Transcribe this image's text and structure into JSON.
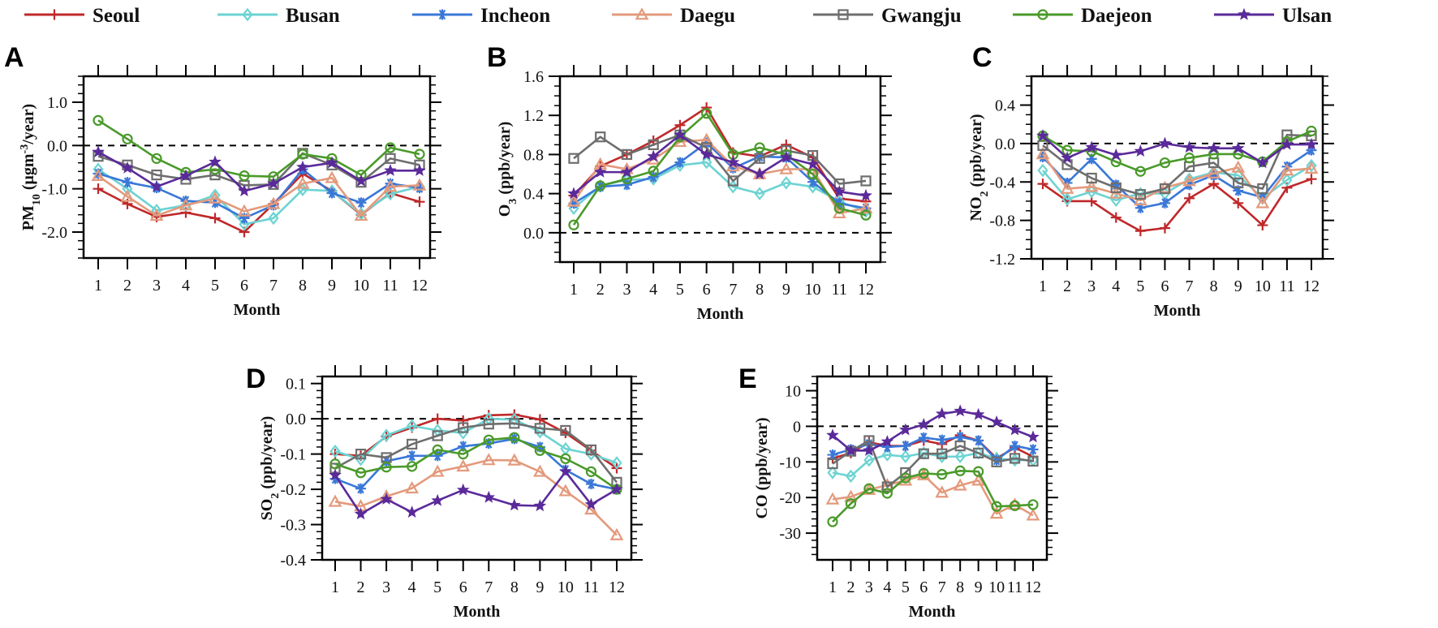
{
  "legend": [
    {
      "name": "Seoul",
      "color": "#c0282a",
      "marker": "plus"
    },
    {
      "name": "Busan",
      "color": "#6dd3d3",
      "marker": "diamond"
    },
    {
      "name": "Incheon",
      "color": "#3a78d8",
      "marker": "asterisk"
    },
    {
      "name": "Daegu",
      "color": "#e39a7c",
      "marker": "triangle"
    },
    {
      "name": "Gwangju",
      "color": "#6e6e6e",
      "marker": "square"
    },
    {
      "name": "Daejeon",
      "color": "#4a9a2a",
      "marker": "circle"
    },
    {
      "name": "Ulsan",
      "color": "#5a2a9a",
      "marker": "star"
    }
  ],
  "chart_data": [
    {
      "panel": "A",
      "type": "line",
      "xlabel": "Month",
      "ylabel_parts": [
        {
          "t": "PM",
          "s": ""
        },
        {
          "t": "10",
          "s": "sub"
        },
        {
          "t": " (μgm",
          "s": ""
        },
        {
          "t": "-3",
          "s": "sup"
        },
        {
          "t": "/year)",
          "s": ""
        }
      ],
      "x": [
        1,
        2,
        3,
        4,
        5,
        6,
        7,
        8,
        9,
        10,
        11,
        12
      ],
      "ylim": [
        -2.6,
        1.6
      ],
      "yticks": [
        1.0,
        0.0,
        -1.0,
        -2.0
      ],
      "ytick_labels": [
        "1.0",
        "0.0",
        "-1.0",
        "-2.0"
      ],
      "yminor": 0.2,
      "zero_line": true,
      "series": [
        {
          "name": "Seoul",
          "values": [
            -1.0,
            -1.35,
            -1.65,
            -1.55,
            -1.68,
            -2.0,
            -1.35,
            -0.65,
            -1.05,
            -1.6,
            -1.1,
            -1.3
          ]
        },
        {
          "name": "Busan",
          "values": [
            -0.55,
            -1.0,
            -1.5,
            -1.38,
            -1.15,
            -1.82,
            -1.68,
            -1.02,
            -1.05,
            -1.58,
            -1.12,
            -0.95
          ]
        },
        {
          "name": "Incheon",
          "values": [
            -0.65,
            -0.85,
            -0.98,
            -1.28,
            -1.32,
            -1.68,
            -1.38,
            -0.55,
            -1.1,
            -1.32,
            -0.88,
            -0.98
          ]
        },
        {
          "name": "Daegu",
          "values": [
            -0.7,
            -1.18,
            -1.62,
            -1.38,
            -1.22,
            -1.52,
            -1.35,
            -0.88,
            -0.75,
            -1.62,
            -0.95,
            -0.92
          ]
        },
        {
          "name": "Gwangju",
          "values": [
            -0.25,
            -0.45,
            -0.68,
            -0.78,
            -0.68,
            -0.92,
            -0.9,
            -0.18,
            -0.45,
            -0.85,
            -0.3,
            -0.45
          ]
        },
        {
          "name": "Daejeon",
          "values": [
            0.58,
            0.15,
            -0.3,
            -0.62,
            -0.55,
            -0.7,
            -0.72,
            -0.2,
            -0.3,
            -0.68,
            -0.05,
            -0.2
          ]
        },
        {
          "name": "Ulsan",
          "values": [
            -0.15,
            -0.52,
            -0.95,
            -0.7,
            -0.38,
            -1.05,
            -0.88,
            -0.5,
            -0.4,
            -0.82,
            -0.58,
            -0.58
          ]
        }
      ]
    },
    {
      "panel": "B",
      "type": "line",
      "xlabel": "Month",
      "ylabel_parts": [
        {
          "t": "O",
          "s": ""
        },
        {
          "t": "3",
          "s": "sub"
        },
        {
          "t": " (ppb/year)",
          "s": ""
        }
      ],
      "x": [
        1,
        2,
        3,
        4,
        5,
        6,
        7,
        8,
        9,
        10,
        11,
        12
      ],
      "ylim": [
        -0.3,
        1.6
      ],
      "yticks": [
        1.6,
        1.2,
        0.8,
        0.4,
        0.0
      ],
      "ytick_labels": [
        "1.6",
        "1.2",
        "0.8",
        "0.4",
        "0.0"
      ],
      "yminor": 0.1,
      "zero_line": true,
      "series": [
        {
          "name": "Seoul",
          "values": [
            0.38,
            0.68,
            0.8,
            0.94,
            1.1,
            1.28,
            0.82,
            0.78,
            0.9,
            0.77,
            0.35,
            0.32
          ]
        },
        {
          "name": "Busan",
          "values": [
            0.25,
            0.48,
            0.54,
            0.55,
            0.69,
            0.72,
            0.47,
            0.4,
            0.51,
            0.47,
            0.32,
            0.22
          ]
        },
        {
          "name": "Incheon",
          "values": [
            0.3,
            0.47,
            0.49,
            0.57,
            0.72,
            0.92,
            0.66,
            0.78,
            0.77,
            0.52,
            0.3,
            0.25
          ]
        },
        {
          "name": "Daegu",
          "values": [
            0.32,
            0.7,
            0.65,
            0.75,
            0.93,
            0.95,
            0.68,
            0.6,
            0.65,
            0.65,
            0.2,
            0.25
          ]
        },
        {
          "name": "Gwangju",
          "values": [
            0.76,
            0.98,
            0.8,
            0.9,
            1.0,
            0.87,
            0.53,
            0.76,
            0.84,
            0.79,
            0.5,
            0.53
          ]
        },
        {
          "name": "Daejeon",
          "values": [
            0.08,
            0.48,
            0.55,
            0.63,
            0.98,
            1.22,
            0.8,
            0.87,
            0.8,
            0.6,
            0.25,
            0.18
          ]
        },
        {
          "name": "Ulsan",
          "values": [
            0.4,
            0.62,
            0.62,
            0.78,
            1.0,
            0.8,
            0.72,
            0.6,
            0.77,
            0.7,
            0.42,
            0.38
          ]
        }
      ]
    },
    {
      "panel": "C",
      "type": "line",
      "xlabel": "Month",
      "ylabel_parts": [
        {
          "t": "NO",
          "s": ""
        },
        {
          "t": "2",
          "s": "sub"
        },
        {
          "t": " (ppb/year)",
          "s": ""
        }
      ],
      "x": [
        1,
        2,
        3,
        4,
        5,
        6,
        7,
        8,
        9,
        10,
        11,
        12
      ],
      "ylim": [
        -1.2,
        0.7
      ],
      "yticks": [
        0.4,
        0.0,
        -0.4,
        -0.8,
        -1.2
      ],
      "ytick_labels": [
        "0.4",
        "0.0",
        "-0.4",
        "-0.8",
        "-1.2"
      ],
      "yminor": 0.1,
      "zero_line": true,
      "series": [
        {
          "name": "Seoul",
          "values": [
            -0.42,
            -0.6,
            -0.6,
            -0.77,
            -0.91,
            -0.88,
            -0.57,
            -0.42,
            -0.62,
            -0.85,
            -0.46,
            -0.37
          ]
        },
        {
          "name": "Busan",
          "values": [
            -0.28,
            -0.58,
            -0.5,
            -0.59,
            -0.52,
            -0.52,
            -0.37,
            -0.3,
            -0.33,
            -0.57,
            -0.38,
            -0.23
          ]
        },
        {
          "name": "Incheon",
          "values": [
            -0.14,
            -0.41,
            -0.16,
            -0.43,
            -0.67,
            -0.62,
            -0.43,
            -0.33,
            -0.49,
            -0.56,
            -0.24,
            -0.07
          ]
        },
        {
          "name": "Daegu",
          "values": [
            -0.11,
            -0.47,
            -0.45,
            -0.52,
            -0.59,
            -0.46,
            -0.39,
            -0.31,
            -0.25,
            -0.62,
            -0.28,
            -0.26
          ]
        },
        {
          "name": "Gwangju",
          "values": [
            -0.02,
            -0.22,
            -0.36,
            -0.46,
            -0.53,
            -0.47,
            -0.24,
            -0.2,
            -0.41,
            -0.47,
            0.09,
            0.08
          ]
        },
        {
          "name": "Daejeon",
          "values": [
            0.08,
            -0.07,
            -0.08,
            -0.19,
            -0.29,
            -0.2,
            -0.15,
            -0.11,
            -0.11,
            -0.19,
            0.02,
            0.13
          ]
        },
        {
          "name": "Ulsan",
          "values": [
            0.08,
            -0.15,
            -0.04,
            -0.12,
            -0.08,
            0.0,
            -0.04,
            -0.05,
            -0.05,
            -0.2,
            -0.01,
            -0.01
          ]
        }
      ]
    },
    {
      "panel": "D",
      "type": "line",
      "xlabel": "Month",
      "ylabel_parts": [
        {
          "t": "SO",
          "s": ""
        },
        {
          "t": "2",
          "s": "sub"
        },
        {
          "t": " (ppb/year)",
          "s": ""
        }
      ],
      "x": [
        1,
        2,
        3,
        4,
        5,
        6,
        7,
        8,
        9,
        10,
        11,
        12
      ],
      "ylim": [
        -0.4,
        0.12
      ],
      "yticks": [
        0.1,
        0.0,
        -0.1,
        -0.2,
        -0.3,
        -0.4
      ],
      "ytick_labels": [
        "0.1",
        "0.0",
        "-0.1",
        "-0.2",
        "-0.3",
        "-0.4"
      ],
      "yminor": 0.02,
      "zero_line": true,
      "series": [
        {
          "name": "Seoul",
          "values": [
            -0.1,
            -0.105,
            -0.05,
            -0.025,
            0.0,
            -0.005,
            0.01,
            0.012,
            -0.002,
            -0.04,
            -0.09,
            -0.14
          ]
        },
        {
          "name": "Busan",
          "values": [
            -0.092,
            -0.115,
            -0.047,
            -0.02,
            -0.033,
            -0.04,
            0.0,
            -0.002,
            -0.037,
            -0.085,
            -0.1,
            -0.125
          ]
        },
        {
          "name": "Incheon",
          "values": [
            -0.17,
            -0.198,
            -0.12,
            -0.105,
            -0.105,
            -0.078,
            -0.07,
            -0.057,
            -0.08,
            -0.145,
            -0.185,
            -0.2
          ]
        },
        {
          "name": "Daegu",
          "values": [
            -0.235,
            -0.248,
            -0.22,
            -0.197,
            -0.15,
            -0.135,
            -0.117,
            -0.118,
            -0.15,
            -0.205,
            -0.257,
            -0.33
          ]
        },
        {
          "name": "Gwangju",
          "values": [
            -0.14,
            -0.1,
            -0.11,
            -0.072,
            -0.048,
            -0.025,
            -0.015,
            -0.013,
            -0.027,
            -0.033,
            -0.088,
            -0.18
          ]
        },
        {
          "name": "Daejeon",
          "values": [
            -0.128,
            -0.153,
            -0.137,
            -0.135,
            -0.088,
            -0.1,
            -0.06,
            -0.053,
            -0.09,
            -0.113,
            -0.15,
            -0.2
          ]
        },
        {
          "name": "Ulsan",
          "values": [
            -0.16,
            -0.27,
            -0.228,
            -0.265,
            -0.232,
            -0.202,
            -0.223,
            -0.245,
            -0.247,
            -0.15,
            -0.243,
            -0.2
          ]
        }
      ]
    },
    {
      "panel": "E",
      "type": "line",
      "xlabel": "Month",
      "ylabel_parts": [
        {
          "t": "CO (ppb/year)",
          "s": ""
        }
      ],
      "x": [
        1,
        2,
        3,
        4,
        5,
        6,
        7,
        8,
        9,
        10,
        11,
        12
      ],
      "ylim": [
        -37.5,
        14
      ],
      "yticks": [
        10,
        0,
        -10,
        -20,
        -30
      ],
      "ytick_labels": [
        "10",
        "0",
        "-10",
        "-20",
        "-30"
      ],
      "yminor": 2,
      "zero_line": true,
      "series": [
        {
          "name": "Seoul",
          "values": [
            -9,
            -7.5,
            -4.5,
            -5.5,
            -5.5,
            -4,
            -5,
            -2.5,
            -4,
            -9,
            -6,
            -8.5
          ]
        },
        {
          "name": "Busan",
          "values": [
            -13,
            -14,
            -9.5,
            -8,
            -8.5,
            -7.5,
            -8.5,
            -8.5,
            -7.5,
            -9,
            -9.5,
            -9.5
          ]
        },
        {
          "name": "Incheon",
          "values": [
            -8,
            -6.5,
            -5,
            -5.8,
            -5.5,
            -3.2,
            -3.8,
            -3,
            -4,
            -9.5,
            -5.5,
            -6.5
          ]
        },
        {
          "name": "Daegu",
          "values": [
            -20.5,
            -19.8,
            -17.8,
            -16.5,
            -15.2,
            -13.7,
            -18.6,
            -16.6,
            -15.2,
            -24.5,
            -22,
            -25
          ]
        },
        {
          "name": "Gwangju",
          "values": [
            -10.5,
            -7,
            -4,
            -17,
            -13,
            -7.7,
            -7.7,
            -5.5,
            -7.5,
            -10,
            -9,
            -9.8
          ]
        },
        {
          "name": "Daejeon",
          "values": [
            -26.8,
            -21.7,
            -17.5,
            -18.8,
            -14.5,
            -13.2,
            -13.5,
            -12.5,
            -12.7,
            -22.5,
            -22.3,
            -22
          ]
        },
        {
          "name": "Ulsan",
          "values": [
            -2.5,
            -6.8,
            -6.8,
            -4.3,
            -1,
            0.5,
            3.5,
            4.3,
            3.3,
            1.2,
            -1,
            -3
          ]
        }
      ]
    }
  ]
}
